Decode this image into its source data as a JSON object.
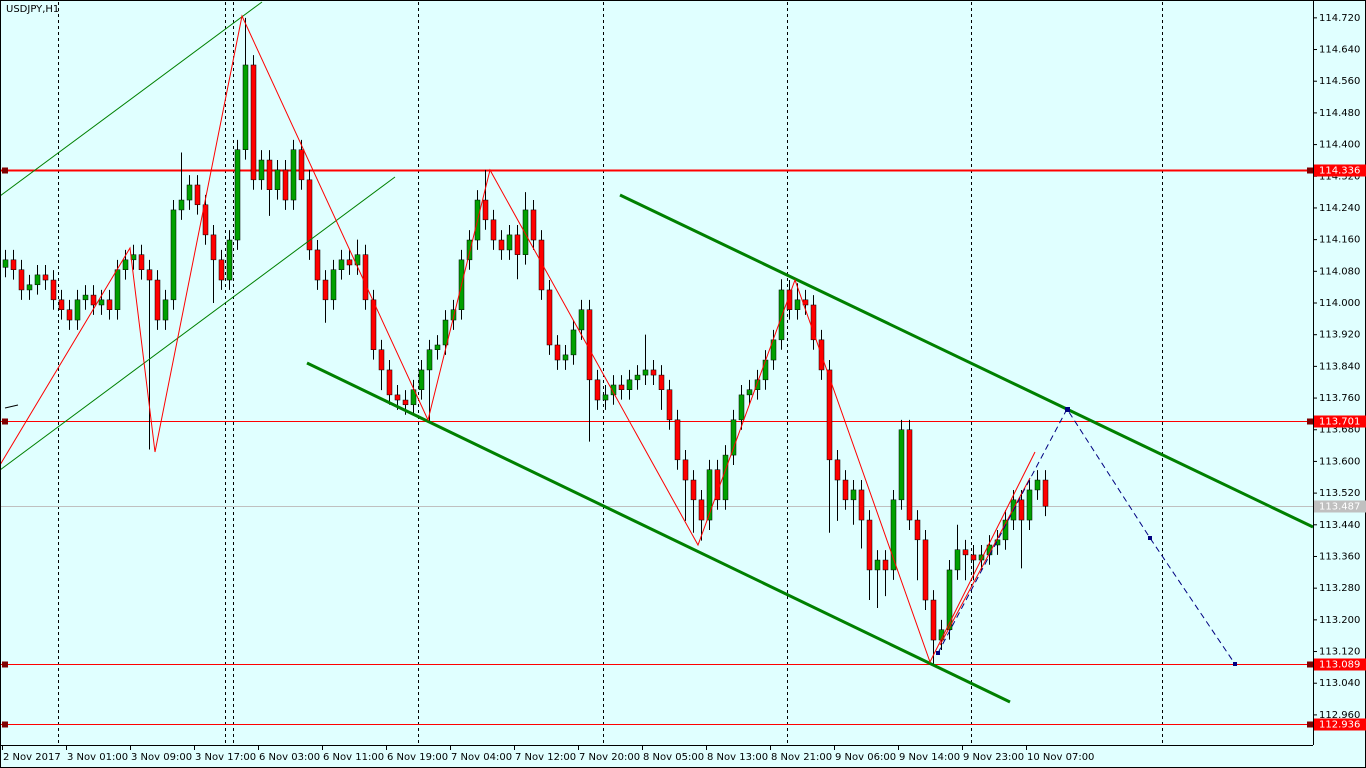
{
  "chart_data": {
    "type": "candlestick",
    "title": "USDJPY,H1",
    "bull_color": "#00a000",
    "bear_color": "#ff0000",
    "wick_color": "#000000",
    "ylim": [
      112.884,
      114.76
    ],
    "yticks": [
      {
        "value": 114.72,
        "label": "114.720"
      },
      {
        "value": 114.64,
        "label": "114.640"
      },
      {
        "value": 114.56,
        "label": "114.560"
      },
      {
        "value": 114.48,
        "label": "114.480"
      },
      {
        "value": 114.4,
        "label": "114.400"
      },
      {
        "value": 114.32,
        "label": "114.320"
      },
      {
        "value": 114.24,
        "label": "114.240"
      },
      {
        "value": 114.16,
        "label": "114.160"
      },
      {
        "value": 114.08,
        "label": "114.080"
      },
      {
        "value": 114.0,
        "label": "114.000"
      },
      {
        "value": 113.92,
        "label": "113.920"
      },
      {
        "value": 113.84,
        "label": "113.840"
      },
      {
        "value": 113.76,
        "label": "113.760"
      },
      {
        "value": 113.68,
        "label": "113.680"
      },
      {
        "value": 113.6,
        "label": "113.600"
      },
      {
        "value": 113.52,
        "label": "113.520"
      },
      {
        "value": 113.44,
        "label": "113.440"
      },
      {
        "value": 113.36,
        "label": "113.360"
      },
      {
        "value": 113.28,
        "label": "113.280"
      },
      {
        "value": 113.2,
        "label": "113.200"
      },
      {
        "value": 113.12,
        "label": "113.120"
      },
      {
        "value": 113.04,
        "label": "113.040"
      },
      {
        "value": 112.96,
        "label": "112.960"
      }
    ],
    "levels": [
      {
        "value": 114.336,
        "color": "#ff0000"
      },
      {
        "value": 113.701,
        "color": "#ff0000"
      },
      {
        "value": 113.089,
        "color": "#ff0000"
      },
      {
        "value": 112.936,
        "color": "#ff0000"
      }
    ],
    "last_price": 113.487,
    "last_price_color": "#c0c0c0",
    "x_labels": [
      "2 Nov 2017",
      "3 Nov 01:00",
      "3 Nov 09:00",
      "3 Nov 17:00",
      "6 Nov 03:00",
      "6 Nov 11:00",
      "6 Nov 19:00",
      "7 Nov 04:00",
      "7 Nov 12:00",
      "7 Nov 20:00",
      "8 Nov 05:00",
      "8 Nov 13:00",
      "8 Nov 21:00",
      "9 Nov 06:00",
      "9 Nov 14:00",
      "9 Nov 23:00",
      "10 Nov 07:00"
    ],
    "ohlc": [
      [
        114.09,
        114.134,
        114.065,
        114.109
      ],
      [
        114.109,
        114.134,
        114.059,
        114.084
      ],
      [
        114.084,
        114.109,
        114.008,
        114.033
      ],
      [
        114.033,
        114.071,
        114.008,
        114.046
      ],
      [
        114.046,
        114.096,
        114.021,
        114.071
      ],
      [
        114.071,
        114.096,
        114.033,
        114.058
      ],
      [
        114.058,
        114.083,
        113.983,
        114.008
      ],
      [
        114.008,
        114.033,
        113.958,
        113.983
      ],
      [
        113.983,
        114.008,
        113.932,
        113.957
      ],
      [
        113.957,
        114.033,
        113.932,
        114.008
      ],
      [
        114.008,
        114.045,
        113.983,
        114.02
      ],
      [
        114.02,
        114.045,
        113.97,
        113.995
      ],
      [
        113.995,
        114.033,
        113.97,
        114.008
      ],
      [
        114.008,
        114.033,
        113.958,
        113.983
      ],
      [
        113.983,
        114.109,
        113.958,
        114.084
      ],
      [
        114.084,
        114.134,
        114.059,
        114.109
      ],
      [
        114.109,
        114.147,
        114.084,
        114.122
      ],
      [
        114.122,
        114.147,
        114.059,
        114.084
      ],
      [
        114.084,
        114.109,
        113.63,
        114.058
      ],
      [
        114.058,
        114.083,
        113.932,
        113.957
      ],
      [
        113.957,
        114.033,
        113.932,
        114.008
      ],
      [
        114.008,
        114.26,
        113.983,
        114.235
      ],
      [
        114.235,
        114.38,
        114.21,
        114.26
      ],
      [
        114.26,
        114.323,
        114.235,
        114.298
      ],
      [
        114.298,
        114.323,
        114.223,
        114.248
      ],
      [
        114.248,
        114.273,
        114.147,
        114.172
      ],
      [
        114.172,
        114.197,
        114.0,
        114.109
      ],
      [
        114.109,
        114.134,
        114.033,
        114.058
      ],
      [
        114.058,
        114.184,
        114.033,
        114.159
      ],
      [
        114.159,
        114.412,
        114.134,
        114.387
      ],
      [
        114.387,
        114.72,
        114.362,
        114.601
      ],
      [
        114.601,
        114.626,
        114.286,
        114.311
      ],
      [
        114.311,
        114.386,
        114.286,
        114.361
      ],
      [
        114.361,
        114.386,
        114.22,
        114.286
      ],
      [
        114.286,
        114.361,
        114.261,
        114.336
      ],
      [
        114.336,
        114.361,
        114.235,
        114.26
      ],
      [
        114.26,
        114.412,
        114.235,
        114.387
      ],
      [
        114.387,
        114.412,
        114.286,
        114.311
      ],
      [
        114.311,
        114.336,
        114.109,
        114.134
      ],
      [
        114.134,
        114.159,
        114.033,
        114.058
      ],
      [
        114.058,
        114.083,
        113.95,
        114.008
      ],
      [
        114.008,
        114.109,
        113.983,
        114.084
      ],
      [
        114.084,
        114.134,
        114.059,
        114.109
      ],
      [
        114.109,
        114.134,
        114.071,
        114.096
      ],
      [
        114.096,
        114.16,
        114.071,
        114.122
      ],
      [
        114.122,
        114.147,
        113.983,
        114.008
      ],
      [
        114.008,
        114.033,
        113.857,
        113.882
      ],
      [
        113.882,
        113.907,
        113.78,
        113.831
      ],
      [
        113.831,
        113.856,
        113.743,
        113.768
      ],
      [
        113.768,
        113.793,
        113.73,
        113.755
      ],
      [
        113.755,
        113.78,
        113.718,
        113.743
      ],
      [
        113.743,
        113.806,
        113.718,
        113.781
      ],
      [
        113.781,
        113.856,
        113.756,
        113.831
      ],
      [
        113.831,
        113.907,
        113.701,
        113.882
      ],
      [
        113.882,
        113.919,
        113.857,
        113.894
      ],
      [
        113.894,
        113.982,
        113.869,
        113.957
      ],
      [
        113.957,
        114.008,
        113.932,
        113.983
      ],
      [
        113.983,
        114.134,
        113.958,
        114.109
      ],
      [
        114.109,
        114.184,
        114.084,
        114.159
      ],
      [
        114.159,
        114.285,
        114.134,
        114.26
      ],
      [
        114.26,
        114.336,
        114.185,
        114.21
      ],
      [
        114.21,
        114.235,
        114.134,
        114.159
      ],
      [
        114.159,
        114.184,
        114.109,
        114.134
      ],
      [
        114.134,
        114.197,
        114.109,
        114.172
      ],
      [
        114.172,
        114.197,
        114.06,
        114.122
      ],
      [
        114.122,
        114.28,
        114.097,
        114.235
      ],
      [
        114.235,
        114.26,
        114.134,
        114.159
      ],
      [
        114.159,
        114.184,
        114.008,
        114.033
      ],
      [
        114.033,
        114.058,
        113.869,
        113.894
      ],
      [
        113.894,
        113.919,
        113.831,
        113.856
      ],
      [
        113.856,
        113.894,
        113.831,
        113.869
      ],
      [
        113.869,
        113.957,
        113.844,
        113.932
      ],
      [
        113.932,
        114.008,
        113.907,
        113.983
      ],
      [
        113.983,
        114.008,
        113.65,
        113.806
      ],
      [
        113.806,
        113.831,
        113.73,
        113.755
      ],
      [
        113.755,
        113.793,
        113.73,
        113.768
      ],
      [
        113.768,
        113.818,
        113.743,
        113.793
      ],
      [
        113.793,
        113.818,
        113.756,
        113.781
      ],
      [
        113.781,
        113.831,
        113.756,
        113.806
      ],
      [
        113.806,
        113.843,
        113.781,
        113.818
      ],
      [
        113.818,
        113.92,
        113.793,
        113.831
      ],
      [
        113.831,
        113.856,
        113.793,
        113.818
      ],
      [
        113.818,
        113.843,
        113.73,
        113.781
      ],
      [
        113.781,
        113.806,
        113.68,
        113.705
      ],
      [
        113.705,
        113.73,
        113.579,
        113.604
      ],
      [
        113.604,
        113.629,
        113.45,
        113.553
      ],
      [
        113.553,
        113.578,
        113.42,
        113.503
      ],
      [
        113.503,
        113.528,
        113.4,
        113.452
      ],
      [
        113.452,
        113.604,
        113.427,
        113.579
      ],
      [
        113.579,
        113.604,
        113.478,
        113.503
      ],
      [
        113.503,
        113.641,
        113.478,
        113.616
      ],
      [
        113.616,
        113.73,
        113.591,
        113.705
      ],
      [
        113.705,
        113.793,
        113.68,
        113.768
      ],
      [
        113.768,
        113.806,
        113.743,
        113.781
      ],
      [
        113.781,
        113.831,
        113.756,
        113.806
      ],
      [
        113.806,
        113.881,
        113.781,
        113.856
      ],
      [
        113.856,
        113.932,
        113.831,
        113.907
      ],
      [
        113.907,
        114.06,
        113.882,
        114.033
      ],
      [
        114.033,
        114.058,
        113.958,
        113.983
      ],
      [
        113.983,
        114.05,
        113.958,
        114.008
      ],
      [
        114.008,
        114.033,
        113.97,
        113.995
      ],
      [
        113.995,
        114.02,
        113.882,
        113.907
      ],
      [
        113.907,
        113.932,
        113.806,
        113.831
      ],
      [
        113.831,
        113.856,
        113.42,
        113.604
      ],
      [
        113.604,
        113.629,
        113.45,
        113.553
      ],
      [
        113.553,
        113.578,
        113.478,
        113.503
      ],
      [
        113.503,
        113.553,
        113.44,
        113.528
      ],
      [
        113.528,
        113.553,
        113.38,
        113.452
      ],
      [
        113.452,
        113.477,
        113.25,
        113.326
      ],
      [
        113.326,
        113.376,
        113.23,
        113.351
      ],
      [
        113.351,
        113.376,
        113.26,
        113.326
      ],
      [
        113.326,
        113.528,
        113.301,
        113.503
      ],
      [
        113.503,
        113.705,
        113.478,
        113.68
      ],
      [
        113.68,
        113.705,
        113.427,
        113.452
      ],
      [
        113.452,
        113.477,
        113.3,
        113.402
      ],
      [
        113.402,
        113.427,
        113.225,
        113.25
      ],
      [
        113.25,
        113.275,
        113.089,
        113.149
      ],
      [
        113.149,
        113.2,
        113.124,
        113.175
      ],
      [
        113.175,
        113.351,
        113.15,
        113.326
      ],
      [
        113.326,
        113.44,
        113.301,
        113.377
      ],
      [
        113.377,
        113.402,
        113.3,
        113.364
      ],
      [
        113.364,
        113.389,
        113.3,
        113.351
      ],
      [
        113.351,
        113.389,
        113.326,
        113.364
      ],
      [
        113.364,
        113.414,
        113.339,
        113.389
      ],
      [
        113.389,
        113.427,
        113.364,
        113.402
      ],
      [
        113.402,
        113.477,
        113.377,
        113.452
      ],
      [
        113.452,
        113.528,
        113.427,
        113.503
      ],
      [
        113.503,
        113.528,
        113.33,
        113.452
      ],
      [
        113.452,
        113.553,
        113.427,
        113.528
      ],
      [
        113.528,
        113.578,
        113.503,
        113.553
      ],
      [
        113.553,
        113.578,
        113.462,
        113.487
      ]
    ]
  }
}
